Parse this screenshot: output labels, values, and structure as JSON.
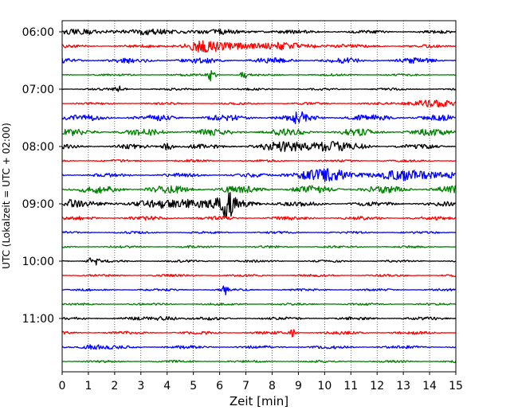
{
  "chart_data": {
    "type": "line",
    "subtype": "seismogram-helicorder",
    "title": "",
    "xlabel": "Zeit  [min]",
    "ylabel": "UTC (Lokalzeit = UTC + 02:00)",
    "xlim": [
      0,
      15
    ],
    "x_ticks": [
      "0",
      "1",
      "2",
      "3",
      "4",
      "5",
      "6",
      "7",
      "8",
      "9",
      "10",
      "11",
      "12",
      "13",
      "14",
      "15"
    ],
    "y_ticks": [
      {
        "label": "06:00",
        "trace": 0
      },
      {
        "label": "07:00",
        "trace": 4
      },
      {
        "label": "08:00",
        "trace": 8
      },
      {
        "label": "09:00",
        "trace": 12
      },
      {
        "label": "10:00",
        "trace": 16
      },
      {
        "label": "11:00",
        "trace": 20
      }
    ],
    "grid": "vertical-dotted",
    "trace_minutes": 15,
    "color_cycle": [
      "#000000",
      "#ff0000",
      "#0000ff",
      "#008000"
    ],
    "series": [
      {
        "start": "06:00",
        "color": "#000000",
        "amp": 2,
        "events": [
          {
            "t": 3.0,
            "a": 2,
            "w": 4.5
          }
        ]
      },
      {
        "start": "06:15",
        "color": "#ff0000",
        "amp": 2,
        "events": [
          {
            "t": 5.3,
            "a": 4,
            "w": 0.7
          },
          {
            "t": 6.2,
            "a": 3,
            "w": 1.5
          },
          {
            "t": 8.5,
            "a": 2.5,
            "w": 2
          }
        ]
      },
      {
        "start": "06:30",
        "color": "#0000ff",
        "amp": 3.5,
        "events": []
      },
      {
        "start": "06:45",
        "color": "#008000",
        "amp": 1.5,
        "events": [
          {
            "t": 5.7,
            "a": 8,
            "w": 0.15
          },
          {
            "t": 6.9,
            "a": 6,
            "w": 0.12
          }
        ]
      },
      {
        "start": "07:00",
        "color": "#000000",
        "amp": 1.5,
        "events": [
          {
            "t": 2.2,
            "a": 3,
            "w": 0.2
          }
        ]
      },
      {
        "start": "07:15",
        "color": "#ff0000",
        "amp": 1.5,
        "events": [
          {
            "t": 14.0,
            "a": 4,
            "w": 0.9
          }
        ]
      },
      {
        "start": "07:30",
        "color": "#0000ff",
        "amp": 4,
        "events": [
          {
            "t": 9.0,
            "a": 5,
            "w": 0.3
          }
        ]
      },
      {
        "start": "07:45",
        "color": "#008000",
        "amp": 4.5,
        "events": []
      },
      {
        "start": "08:00",
        "color": "#000000",
        "amp": 3,
        "events": [
          {
            "t": 4.0,
            "a": 6,
            "w": 0.2
          },
          {
            "t": 9.5,
            "a": 5.5,
            "w": 1.6
          }
        ]
      },
      {
        "start": "08:15",
        "color": "#ff0000",
        "amp": 1.5,
        "events": []
      },
      {
        "start": "08:30",
        "color": "#0000ff",
        "amp": 2.5,
        "events": [
          {
            "t": 10.0,
            "a": 6,
            "w": 1.2
          },
          {
            "t": 13.5,
            "a": 5,
            "w": 1.5
          }
        ]
      },
      {
        "start": "08:45",
        "color": "#008000",
        "amp": 5,
        "events": []
      },
      {
        "start": "09:00",
        "color": "#000000",
        "amp": 3,
        "events": [
          {
            "t": 0.3,
            "a": 4,
            "w": 0.3
          },
          {
            "t": 6.3,
            "a": 13,
            "w": 0.25
          },
          {
            "t": 5.0,
            "a": 5,
            "w": 2
          }
        ]
      },
      {
        "start": "09:15",
        "color": "#ff0000",
        "amp": 2.5,
        "events": []
      },
      {
        "start": "09:30",
        "color": "#0000ff",
        "amp": 1.5,
        "events": []
      },
      {
        "start": "09:45",
        "color": "#008000",
        "amp": 1.5,
        "events": []
      },
      {
        "start": "10:00",
        "color": "#000000",
        "amp": 1.5,
        "events": [
          {
            "t": 1.2,
            "a": 5,
            "w": 0.25
          }
        ]
      },
      {
        "start": "10:15",
        "color": "#ff0000",
        "amp": 1.5,
        "events": []
      },
      {
        "start": "10:30",
        "color": "#0000ff",
        "amp": 1.5,
        "events": [
          {
            "t": 6.2,
            "a": 7,
            "w": 0.1
          }
        ]
      },
      {
        "start": "10:45",
        "color": "#008000",
        "amp": 1.5,
        "events": []
      },
      {
        "start": "11:00",
        "color": "#000000",
        "amp": 2,
        "events": [
          {
            "t": 4.0,
            "a": 2.5,
            "w": 0.5
          }
        ]
      },
      {
        "start": "11:15",
        "color": "#ff0000",
        "amp": 2,
        "events": [
          {
            "t": 8.8,
            "a": 5,
            "w": 0.1
          }
        ]
      },
      {
        "start": "11:30",
        "color": "#0000ff",
        "amp": 2,
        "events": [
          {
            "t": 1.2,
            "a": 3,
            "w": 0.5
          }
        ]
      },
      {
        "start": "11:45",
        "color": "#008000",
        "amp": 1.5,
        "events": []
      }
    ]
  }
}
